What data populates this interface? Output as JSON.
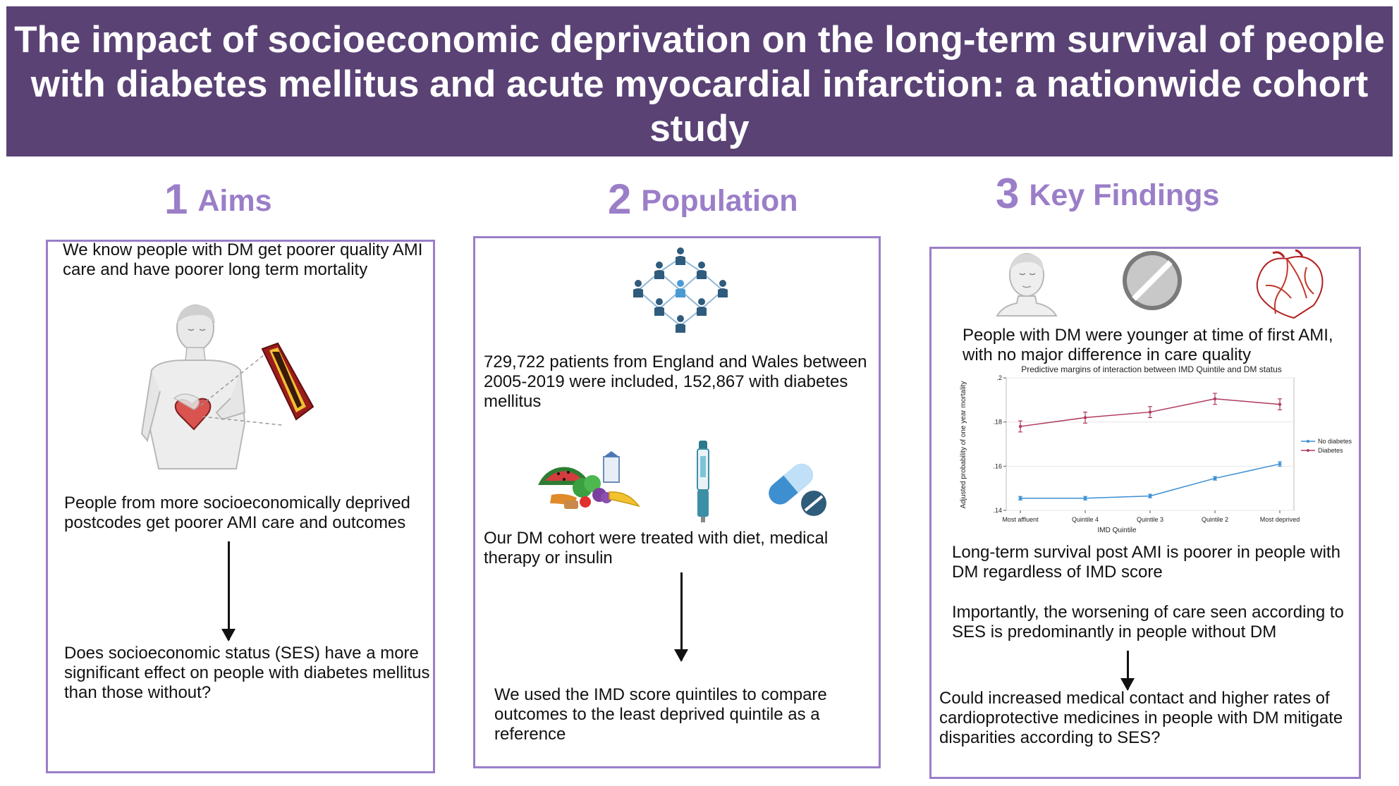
{
  "title": "The impact of socioeconomic deprivation on the long-term survival of people with diabetes mellitus and acute myocardial infarction: a nationwide cohort study",
  "sections": {
    "aims": {
      "number": "1",
      "heading": "Aims",
      "text1": "We know people with DM get poorer quality AMI care and have poorer long term mortality",
      "text2": "People from more socioeconomically deprived postcodes get poorer AMI care and outcomes",
      "text3": "Does socioeconomic status (SES) have a more significant effect on people with diabetes mellitus than those without?"
    },
    "population": {
      "number": "2",
      "heading": "Population",
      "text1": "729,722 patients from England and Wales between 2005-2019 were included, 152,867 with diabetes mellitus",
      "text2": "Our DM cohort were treated with diet, medical therapy or insulin",
      "text3": "We used the IMD score quintiles to compare outcomes to the least deprived quintile as a reference"
    },
    "findings": {
      "number": "3",
      "heading": "Key Findings",
      "text1": "People with DM were younger at time of first AMI, with no major difference in care quality",
      "text2": "Long-term survival post AMI is poorer in people with DM regardless of IMD score",
      "text3": "Importantly, the worsening of care seen according to SES is predominantly in people without DM",
      "text4": "Could increased medical contact and higher rates of cardioprotective medicines in people with DM mitigate disparities according to SES?"
    }
  },
  "icons": [
    "person-heart-icon",
    "artery-plaque-icon",
    "people-network-icon",
    "food-icon",
    "insulin-pen-icon",
    "pill-capsule-icon",
    "face-icon",
    "tablet-icon",
    "heart-vessels-icon"
  ],
  "chart_data": {
    "type": "line",
    "title": "Predictive margins of interaction between IMD Quintile and DM status",
    "xlabel": "IMD Quintile",
    "ylabel": "Adjusted probability of one year mortality",
    "categories": [
      "Most affluent",
      "Quintile 4",
      "Quintile 3",
      "Quintile 2",
      "Most deprived"
    ],
    "yticks": [
      ".14",
      ".16",
      ".18",
      ".2"
    ],
    "ylim": [
      0.14,
      0.2
    ],
    "legend": "right",
    "series": [
      {
        "name": "No diabetes",
        "values": [
          0.1455,
          0.1455,
          0.1465,
          0.1545,
          0.161
        ],
        "err": [
          0.0008,
          0.0008,
          0.0008,
          0.0008,
          0.001
        ],
        "color": "#3a8fd4"
      },
      {
        "name": "Diabetes",
        "values": [
          0.178,
          0.182,
          0.1845,
          0.1905,
          0.188
        ],
        "err": [
          0.0025,
          0.0025,
          0.0025,
          0.0025,
          0.0025
        ],
        "color": "#b03a5b"
      }
    ]
  },
  "colors": {
    "banner": "#5a4275",
    "accent": "#9b7ec8"
  }
}
